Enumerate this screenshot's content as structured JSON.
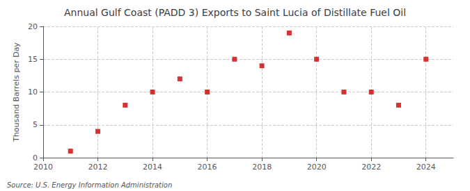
{
  "chart_data": {
    "type": "scatter",
    "title": "Annual Gulf Coast (PADD 3) Exports to Saint Lucia of Distillate Fuel Oil",
    "ylabel": "Thousand Barrels per Day",
    "annotations": [
      "Source: U.S. Energy Information Administration"
    ],
    "x": [
      2011,
      2012,
      2013,
      2014,
      2015,
      2016,
      2017,
      2018,
      2019,
      2020,
      2021,
      2022,
      2023,
      2024
    ],
    "values": [
      1,
      4,
      8,
      10,
      12,
      10,
      15,
      14,
      19,
      15,
      10,
      10,
      8,
      15
    ],
    "color": "#cc0000",
    "marker": "square",
    "xlim": [
      2010,
      2025
    ],
    "ylim": [
      0,
      20
    ],
    "xticks": [
      2010,
      2012,
      2014,
      2016,
      2018,
      2020,
      2022,
      2024
    ],
    "yticks": [
      0,
      5,
      10,
      15,
      20
    ],
    "grid": true
  }
}
